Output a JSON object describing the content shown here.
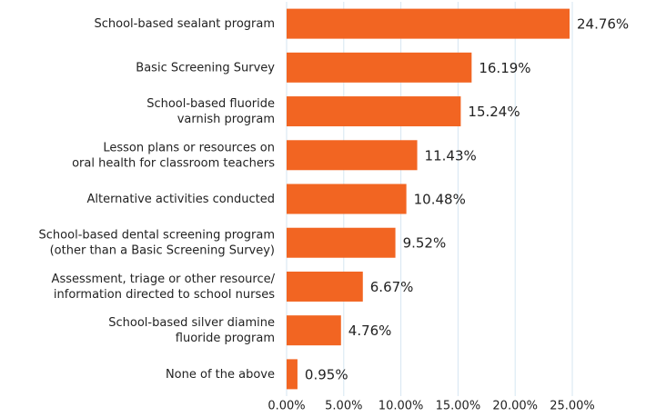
{
  "chart_data": {
    "type": "bar",
    "orientation": "horizontal",
    "categories": [
      "School-based sealant program",
      "Basic Screening Survey",
      "School-based fluoride\nvarnish program",
      "Lesson plans or resources on\noral health for classroom teachers",
      "Alternative activities conducted",
      "School-based dental screening program\n(other than a Basic Screening Survey)",
      "Assessment, triage or other resource/\ninformation directed to school nurses",
      "School-based silver diamine\nfluoride program",
      "None of the above"
    ],
    "values": [
      24.76,
      16.19,
      15.24,
      11.43,
      10.48,
      9.52,
      6.67,
      4.76,
      0.95
    ],
    "value_labels": [
      "24.76%",
      "16.19%",
      "15.24%",
      "11.43%",
      "10.48%",
      "9.52%",
      "6.67%",
      "4.76%",
      "0.95%"
    ],
    "color": "#f26522",
    "xlim": [
      0,
      25
    ],
    "xticks": [
      {
        "value": 0,
        "label": "0.00%"
      },
      {
        "value": 5,
        "label": "5.00%"
      },
      {
        "value": 10,
        "label": "10.00%"
      },
      {
        "value": 15,
        "label": "15.00%"
      },
      {
        "value": 20,
        "label": "20.00%"
      },
      {
        "value": 25,
        "label": "25.00%"
      }
    ],
    "grid": true
  }
}
